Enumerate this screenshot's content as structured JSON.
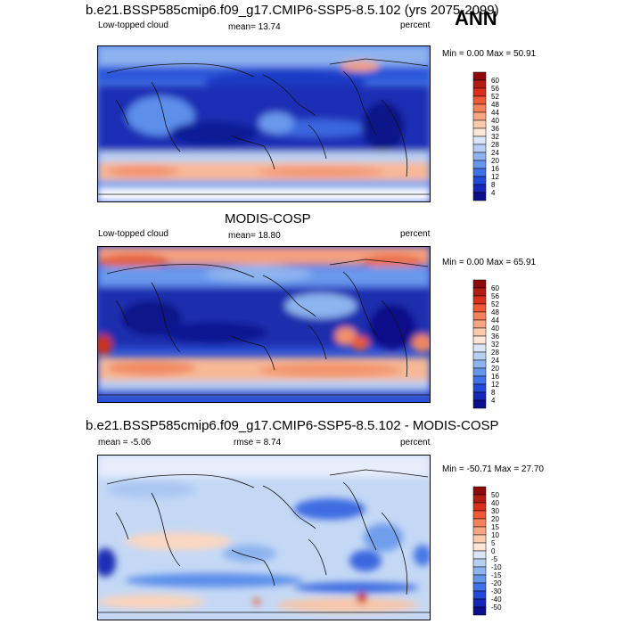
{
  "season": "ANN",
  "panels": [
    {
      "id": "model",
      "title": "b.e21.BSSP585cmip6.f09_g17.CMIP6-SSP5-8.5.102 (yrs 2075-2099)",
      "left_label": "Low-topped cloud",
      "stat_label": "mean=  13.74",
      "right_label": "percent",
      "minmax": "Min =   0.00 Max =  50.91",
      "colorbar": {
        "levels": [
          "60",
          "56",
          "52",
          "48",
          "44",
          "40",
          "36",
          "32",
          "28",
          "24",
          "20",
          "16",
          "12",
          "8",
          "4"
        ],
        "colors": [
          "#8c0a0a",
          "#b01e12",
          "#d9301c",
          "#ec5a36",
          "#f3825a",
          "#f7a681",
          "#fbcaad",
          "#fde6d8",
          "#d9e6f7",
          "#b6cff3",
          "#8db4ef",
          "#6496ec",
          "#3f72e6",
          "#2249d6",
          "#1626b8",
          "#0a0f8a"
        ]
      }
    },
    {
      "id": "obs",
      "title": "MODIS-COSP",
      "left_label": "Low-topped cloud",
      "stat_label": "mean=  18.80",
      "right_label": "percent",
      "minmax": "Min =   0.00 Max =  65.91",
      "colorbar": {
        "levels": [
          "60",
          "56",
          "52",
          "48",
          "44",
          "40",
          "36",
          "32",
          "28",
          "24",
          "20",
          "16",
          "12",
          "8",
          "4"
        ],
        "colors": [
          "#8c0a0a",
          "#b01e12",
          "#d9301c",
          "#ec5a36",
          "#f3825a",
          "#f7a681",
          "#fbcaad",
          "#fde6d8",
          "#d9e6f7",
          "#b6cff3",
          "#8db4ef",
          "#6496ec",
          "#3f72e6",
          "#2249d6",
          "#1626b8",
          "#0a0f8a"
        ]
      }
    },
    {
      "id": "diff",
      "title": "b.e21.BSSP585cmip6.f09_g17.CMIP6-SSP5-8.5.102 - MODIS-COSP",
      "left_label": "mean =  -5.06",
      "stat_label": "rmse =  8.74",
      "right_label": "percent",
      "minmax": "Min = -50.71 Max =  27.70",
      "colorbar": {
        "levels": [
          "50",
          "40",
          "30",
          "20",
          "15",
          "10",
          "5",
          "0",
          "-5",
          "-10",
          "-15",
          "-20",
          "-30",
          "-40",
          "-50"
        ],
        "colors": [
          "#8c0a0a",
          "#b01e12",
          "#d9301c",
          "#ec5a36",
          "#f3825a",
          "#f7a681",
          "#fbcaad",
          "#fde6d8",
          "#d9e6f7",
          "#b6cff3",
          "#8db4ef",
          "#6496ec",
          "#3f72e6",
          "#2249d6",
          "#1626b8",
          "#0a0f8a"
        ]
      }
    }
  ]
}
